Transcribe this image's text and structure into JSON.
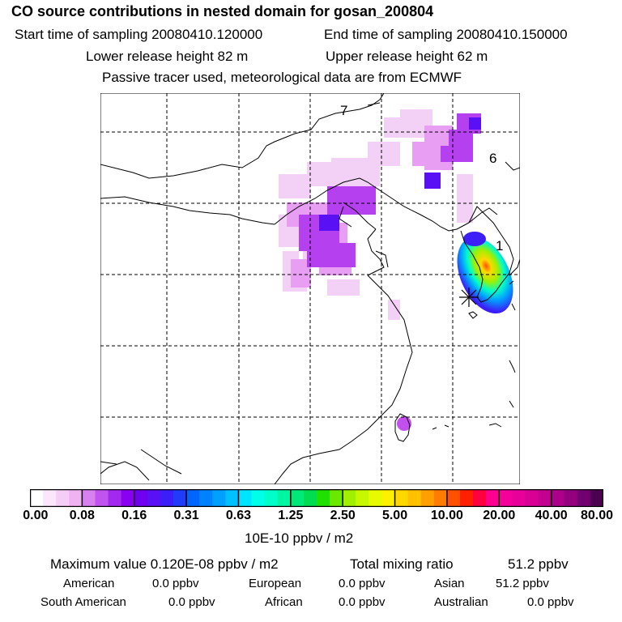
{
  "header": {
    "title": "CO  source contributions in nested domain for gosan_200804",
    "start_label": "Start time of sampling 20080410.120000",
    "end_label": "End time of sampling 20080410.150000",
    "lower_label": "Lower release height   82 m",
    "upper_label": "Upper release height   62 m",
    "tracer_label": "Passive tracer used, meteorological data are from ECMWF"
  },
  "map": {
    "region_labels": [
      "7",
      "6",
      "1"
    ]
  },
  "colorbar": {
    "unit_label": "10E-10 ppbv / m2",
    "tick_labels": [
      "0.00",
      "0.08",
      "0.16",
      "0.31",
      "0.63",
      "1.25",
      "2.50",
      "5.00",
      "10.00",
      "20.00",
      "40.00",
      "80.00"
    ],
    "colors": [
      "#ffffff",
      "#fbe6fb",
      "#f6cdf6",
      "#f0b3f2",
      "#d780f0",
      "#c153ef",
      "#a329ef",
      "#8a00f0",
      "#6f00f0",
      "#5a10f5",
      "#3c1ef8",
      "#1e3cfa",
      "#0064ff",
      "#0082ff",
      "#00a0ff",
      "#00c0ff",
      "#00e5ff",
      "#00ffe8",
      "#00ffc8",
      "#00f5a0",
      "#00e878",
      "#00dd50",
      "#20e000",
      "#6ae800",
      "#a0f000",
      "#c8f800",
      "#e8fa00",
      "#fff000",
      "#ffd800",
      "#ffc000",
      "#ffa000",
      "#ff7c00",
      "#ff5000",
      "#ff2000",
      "#ff0040",
      "#ff0090",
      "#f5009a",
      "#e8009a",
      "#d80095",
      "#c40090",
      "#ad008a",
      "#92007f",
      "#720070",
      "#4d0050"
    ]
  },
  "footer": {
    "max_label": "Maximum value  0.120E-08 ppbv / m2",
    "total_label": "Total mixing ratio",
    "total_value": "51.2 ppbv",
    "regions": [
      {
        "name": "American",
        "value": "0.0 ppbv"
      },
      {
        "name": "European",
        "value": "0.0 ppbv"
      },
      {
        "name": "Asian",
        "value": "51.2 ppbv"
      },
      {
        "name": "South American",
        "value": "0.0 ppbv"
      },
      {
        "name": "African",
        "value": "0.0 ppbv"
      },
      {
        "name": "Australian",
        "value": "0.0 ppbv"
      }
    ]
  }
}
